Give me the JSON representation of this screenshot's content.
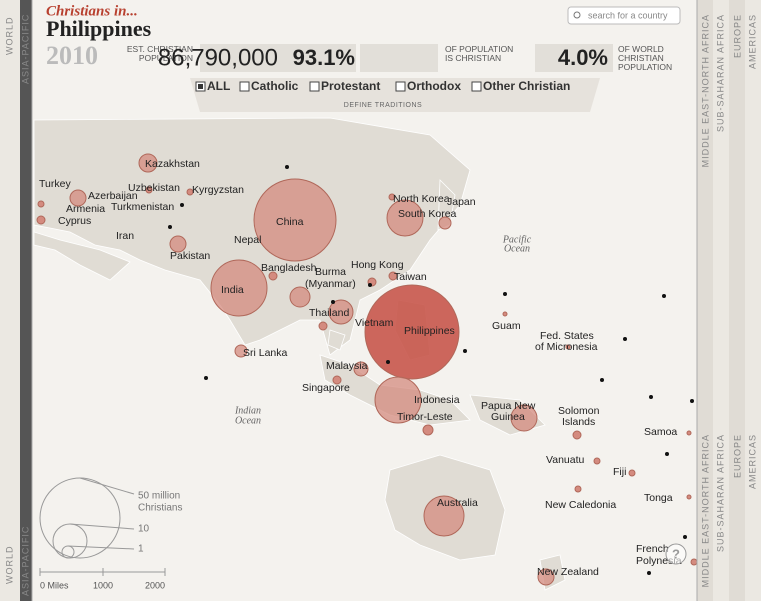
{
  "header": {
    "kicker": "Christians in...",
    "country": "Philippines",
    "year": "2010",
    "search_placeholder": "search for a country",
    "stats": [
      {
        "label": "EST. CHRISTIAN POPULATION",
        "value": "86,790,000"
      },
      {
        "label": "OF POPULATION IS CHRISTIAN",
        "value": "93.1%"
      },
      {
        "label": "OF WORLD CHRISTIAN POPULATION",
        "value": "4.0%"
      }
    ],
    "filters": [
      "ALL",
      "Catholic",
      "Protestant",
      "Orthodox",
      "Other Christian"
    ],
    "filters_caption": "DEFINE TRADITIONS"
  },
  "side_tabs": {
    "left": [
      "WORLD",
      "ASIA-PACIFIC"
    ],
    "right": [
      "MIDDLE EAST-NORTH AFRICA",
      "SUB-SAHARAN AFRICA",
      "EUROPE",
      "AMERICAS"
    ]
  },
  "map": {
    "labels": [
      "Kazakhstan",
      "Turkey",
      "Uzbekistan",
      "Kyrgyzstan",
      "Azerbaijan",
      "Turkmenistan",
      "Armenia",
      "Cyprus",
      "Iran",
      "China",
      "Nepal",
      "Pakistan",
      "Bangladesh",
      "Burma",
      "(Myanmar)",
      "Hong Kong",
      "Taiwan",
      "North Korea",
      "South Korea",
      "Japan",
      "India",
      "Thailand",
      "Vietnam",
      "Philippines",
      "Guam",
      "Fed. States",
      "of Micronesia",
      "Sri Lanka",
      "Malaysia",
      "Singapore",
      "Indonesia",
      "Timor-Leste",
      "Papua New",
      "Guinea",
      "Solomon",
      "Islands",
      "Samoa",
      "Vanuatu",
      "Fiji",
      "Tonga",
      "New Caledonia",
      "Australia",
      "French",
      "Polynesia",
      "New Zealand"
    ],
    "oceans": [
      "Pacific",
      "Ocean",
      "Indian",
      "Ocean"
    ]
  },
  "legend": {
    "labels": [
      "50 million",
      "Christians",
      "10",
      "1"
    ],
    "scale": [
      "0 Miles",
      "1000",
      "2000"
    ]
  }
}
